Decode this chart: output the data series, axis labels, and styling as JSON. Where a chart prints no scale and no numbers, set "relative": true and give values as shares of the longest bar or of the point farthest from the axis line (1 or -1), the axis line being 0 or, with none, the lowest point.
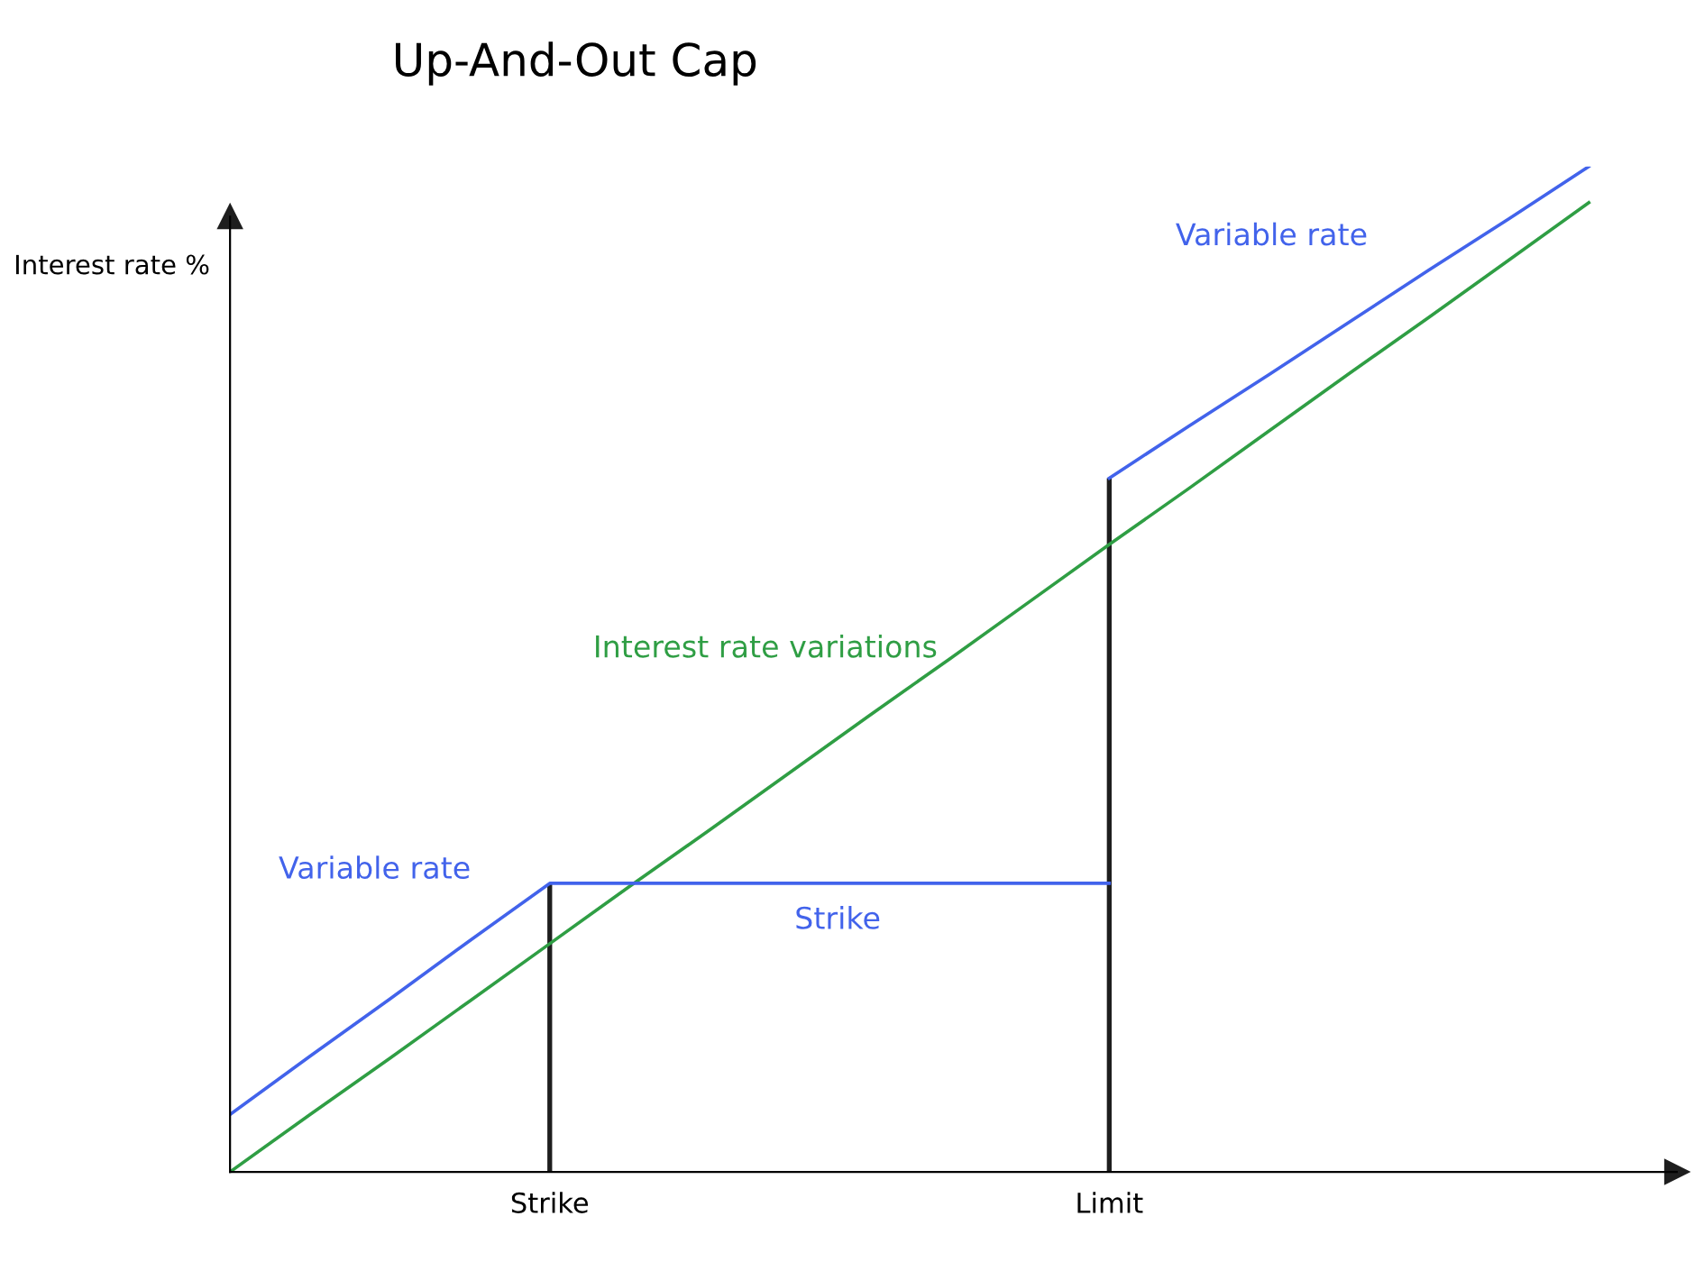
{
  "chart_data": {
    "type": "line",
    "title": "Up-And-Out Cap",
    "ylabel": "Interest rate %",
    "relative": true,
    "categories": [
      null,
      null,
      null,
      null,
      "Strike",
      null,
      null,
      null,
      null,
      null,
      null,
      "Limit",
      null,
      null,
      null,
      null,
      null,
      null
    ],
    "tick_labels": "x",
    "series": [
      {
        "color": "#2f9e44",
        "values": [
          0,
          0.057,
          0.113,
          0.17,
          0.227,
          0.284,
          0.34,
          0.397,
          0.454,
          0.51,
          0.567,
          0.624,
          0.68,
          0.737,
          0.794,
          0.85,
          0.907,
          0.964
        ]
      },
      {
        "color": "#4263eb",
        "values": [
          0.057,
          0.115,
          0.172,
          0.23,
          0.287,
          0.287,
          0.287,
          0.287,
          0.287,
          0.287,
          0.287,
          0.287,
          null,
          null,
          null,
          null,
          null,
          null
        ]
      },
      {
        "color": "#4263eb",
        "values": [
          null,
          null,
          null,
          null,
          null,
          null,
          null,
          null,
          null,
          null,
          null,
          0.69,
          0.742,
          0.793,
          0.845,
          0.897,
          0.948,
          1.0
        ]
      },
      {
        "type": "bar",
        "color": "#1e1e1e",
        "values": [
          null,
          null,
          null,
          null,
          0.287,
          null,
          null,
          null,
          null,
          null,
          null,
          0.69,
          null,
          null,
          null,
          null,
          null,
          null
        ]
      }
    ],
    "annotations": [
      "Variable rate",
      "Strike",
      "Interest rate variations",
      "Variable rate"
    ],
    "grid": false,
    "legend": false
  }
}
